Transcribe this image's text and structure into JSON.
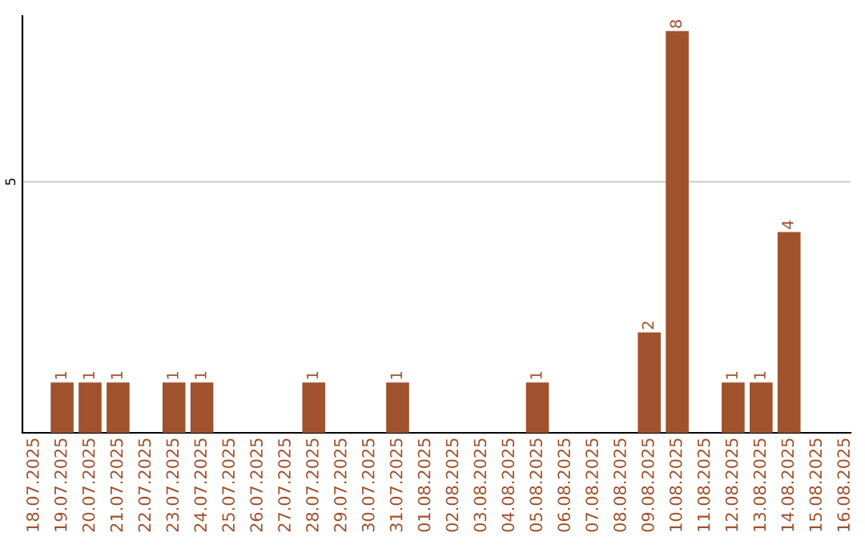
{
  "chart_data": {
    "type": "bar",
    "categories": [
      "18.07.2025",
      "19.07.2025",
      "20.07.2025",
      "21.07.2025",
      "22.07.2025",
      "23.07.2025",
      "24.07.2025",
      "25.07.2025",
      "26.07.2025",
      "27.07.2025",
      "28.07.2025",
      "29.07.2025",
      "30.07.2025",
      "31.07.2025",
      "01.08.2025",
      "02.08.2025",
      "03.08.2025",
      "04.08.2025",
      "05.08.2025",
      "06.08.2025",
      "07.08.2025",
      "08.08.2025",
      "09.08.2025",
      "10.08.2025",
      "11.08.2025",
      "12.08.2025",
      "13.08.2025",
      "14.08.2025",
      "15.08.2025",
      "16.08.2025"
    ],
    "values": [
      0,
      1,
      1,
      1,
      0,
      1,
      1,
      0,
      0,
      0,
      1,
      0,
      0,
      1,
      0,
      0,
      0,
      0,
      1,
      0,
      0,
      0,
      2,
      8,
      0,
      1,
      1,
      4,
      0,
      0
    ],
    "value_labels": [
      null,
      "1",
      "1",
      "1",
      null,
      "1",
      "1",
      null,
      null,
      null,
      "1",
      null,
      null,
      "1",
      null,
      null,
      null,
      null,
      "1",
      null,
      null,
      null,
      "2",
      "8",
      null,
      "1",
      "1",
      "4",
      null,
      null
    ],
    "color": "#a0522d",
    "ylim": [
      0,
      8.3
    ],
    "yticks": [
      5
    ],
    "grid": "y"
  }
}
